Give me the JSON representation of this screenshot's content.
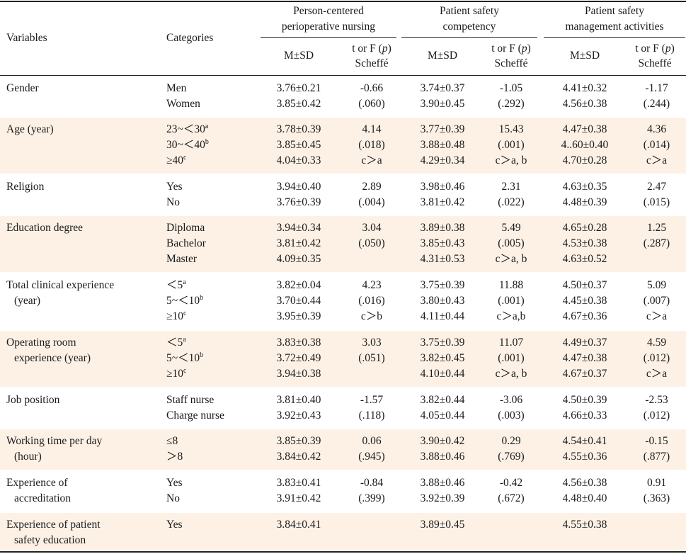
{
  "header": {
    "variables": "Variables",
    "categories": "Categories",
    "groups": [
      {
        "line1": "Person-centered",
        "line2": "perioperative nursing"
      },
      {
        "line1": "Patient safety",
        "line2": "competency"
      },
      {
        "line1": "Patient safety",
        "line2": "management activities"
      }
    ],
    "msd": "M±SD",
    "stat1": "t or F (",
    "stat_p": "p",
    "stat2": ")",
    "scheffe": "Scheffé"
  },
  "rows": [
    {
      "var": [
        "Gender"
      ],
      "cats": [
        [
          "Men",
          ""
        ],
        [
          "Women",
          ""
        ]
      ],
      "pcn_m": [
        "3.76±0.21",
        "3.85±0.42"
      ],
      "pcn_t": [
        "-0.66",
        "(.060)"
      ],
      "psc_m": [
        "3.74±0.37",
        "3.90±0.45"
      ],
      "psc_t": [
        "-1.05",
        "(.292)"
      ],
      "psm_m": [
        "4.41±0.32",
        "4.56±0.38"
      ],
      "psm_t": [
        "-1.17",
        "(.244)"
      ]
    },
    {
      "var": [
        "Age (year)"
      ],
      "cats": [
        [
          "23~＜30",
          "a"
        ],
        [
          "30~＜40",
          "b"
        ],
        [
          "≥40",
          "c"
        ]
      ],
      "pcn_m": [
        "3.78±0.39",
        "3.85±0.45",
        "4.04±0.33"
      ],
      "pcn_t": [
        "4.14",
        "(.018)",
        "c＞a"
      ],
      "psc_m": [
        "3.77±0.39",
        "3.88±0.48",
        "4.29±0.34"
      ],
      "psc_t": [
        "15.43",
        "(.001)",
        "c＞a, b"
      ],
      "psm_m": [
        "4.47±0.38",
        "4..60±0.40",
        "4.70±0.28"
      ],
      "psm_t": [
        "4.36",
        "(.014)",
        "c＞a"
      ]
    },
    {
      "var": [
        "Religion"
      ],
      "cats": [
        [
          "Yes",
          ""
        ],
        [
          "No",
          ""
        ]
      ],
      "pcn_m": [
        "3.94±0.40",
        "3.76±0.39"
      ],
      "pcn_t": [
        "2.89",
        "(.004)"
      ],
      "psc_m": [
        "3.98±0.46",
        "3.81±0.42"
      ],
      "psc_t": [
        "2.31",
        "(.022)"
      ],
      "psm_m": [
        "4.63±0.35",
        "4.48±0.39"
      ],
      "psm_t": [
        "2.47",
        "(.015)"
      ]
    },
    {
      "var": [
        "Education degree"
      ],
      "cats": [
        [
          "Diploma",
          ""
        ],
        [
          "Bachelor",
          ""
        ],
        [
          "Master",
          ""
        ]
      ],
      "pcn_m": [
        "3.94±0.34",
        "3.81±0.42",
        "4.09±0.35"
      ],
      "pcn_t": [
        "3.04",
        "(.050)",
        ""
      ],
      "psc_m": [
        "3.89±0.38",
        "3.85±0.43",
        "4.31±0.53"
      ],
      "psc_t": [
        "5.49",
        "(.005)",
        "c＞a, b"
      ],
      "psm_m": [
        "4.65±0.28",
        "4.53±0.38",
        "4.63±0.52"
      ],
      "psm_t": [
        "1.25",
        "(.287)",
        ""
      ]
    },
    {
      "var": [
        "Total clinical experience",
        "(year)"
      ],
      "cats": [
        [
          "＜5",
          "a"
        ],
        [
          "5~＜10",
          "b"
        ],
        [
          "≥10",
          "c"
        ]
      ],
      "pcn_m": [
        "3.82±0.04",
        "3.70±0.44",
        "3.95±0.39"
      ],
      "pcn_t": [
        "4.23",
        "(.016)",
        "c＞b"
      ],
      "psc_m": [
        "3.75±0.39",
        "3.80±0.43",
        "4.11±0.44"
      ],
      "psc_t": [
        "11.88",
        "(.001)",
        "c＞a,b"
      ],
      "psm_m": [
        "4.50±0.37",
        "4.45±0.38",
        "4.67±0.36"
      ],
      "psm_t": [
        "5.09",
        "(.007)",
        "c＞a"
      ]
    },
    {
      "var": [
        "Operating room",
        "experience (year)"
      ],
      "cats": [
        [
          "＜5",
          "a"
        ],
        [
          "5~＜10",
          "b"
        ],
        [
          "≥10",
          "c"
        ]
      ],
      "pcn_m": [
        "3.83±0.38",
        "3.72±0.49",
        "3.94±0.38"
      ],
      "pcn_t": [
        "3.03",
        "(.051)",
        ""
      ],
      "psc_m": [
        "3.75±0.39",
        "3.82±0.45",
        "4.10±0.44"
      ],
      "psc_t": [
        "11.07",
        "(.001)",
        "c＞a, b"
      ],
      "psm_m": [
        "4.49±0.37",
        "4.47±0.38",
        "4.67±0.37"
      ],
      "psm_t": [
        "4.59",
        "(.012)",
        "c＞a"
      ]
    },
    {
      "var": [
        "Job position"
      ],
      "cats": [
        [
          "Staff nurse",
          ""
        ],
        [
          "Charge nurse",
          ""
        ]
      ],
      "pcn_m": [
        "3.81±0.40",
        "3.92±0.43"
      ],
      "pcn_t": [
        "-1.57",
        "(.118)"
      ],
      "psc_m": [
        "3.82±0.44",
        "4.05±0.44"
      ],
      "psc_t": [
        "-3.06",
        "(.003)"
      ],
      "psm_m": [
        "4.50±0.39",
        "4.66±0.33"
      ],
      "psm_t": [
        "-2.53",
        "(.012)"
      ]
    },
    {
      "var": [
        "Working time per day",
        "(hour)"
      ],
      "cats": [
        [
          "≤8",
          ""
        ],
        [
          "＞8",
          ""
        ]
      ],
      "pcn_m": [
        "3.85±0.39",
        "3.84±0.42"
      ],
      "pcn_t": [
        "0.06",
        "(.945)"
      ],
      "psc_m": [
        "3.90±0.42",
        "3.88±0.46"
      ],
      "psc_t": [
        "0.29",
        "(.769)"
      ],
      "psm_m": [
        "4.54±0.41",
        "4.55±0.36"
      ],
      "psm_t": [
        "-0.15",
        "(.877)"
      ]
    },
    {
      "var": [
        "Experience of",
        "accreditation"
      ],
      "cats": [
        [
          "Yes",
          ""
        ],
        [
          "No",
          ""
        ]
      ],
      "pcn_m": [
        "3.83±0.41",
        "3.91±0.42"
      ],
      "pcn_t": [
        "-0.84",
        "(.399)"
      ],
      "psc_m": [
        "3.88±0.46",
        "3.92±0.39"
      ],
      "psc_t": [
        "-0.42",
        "(.672)"
      ],
      "psm_m": [
        "4.56±0.38",
        "4.48±0.40"
      ],
      "psm_t": [
        "0.91",
        "(.363)"
      ]
    },
    {
      "var": [
        "Experience of patient",
        "safety education"
      ],
      "cats": [
        [
          "Yes",
          ""
        ]
      ],
      "pcn_m": [
        "3.84±0.41"
      ],
      "pcn_t": [],
      "psc_m": [
        "3.89±0.45"
      ],
      "psc_t": [],
      "psm_m": [
        "4.55±0.38"
      ],
      "psm_t": []
    }
  ]
}
